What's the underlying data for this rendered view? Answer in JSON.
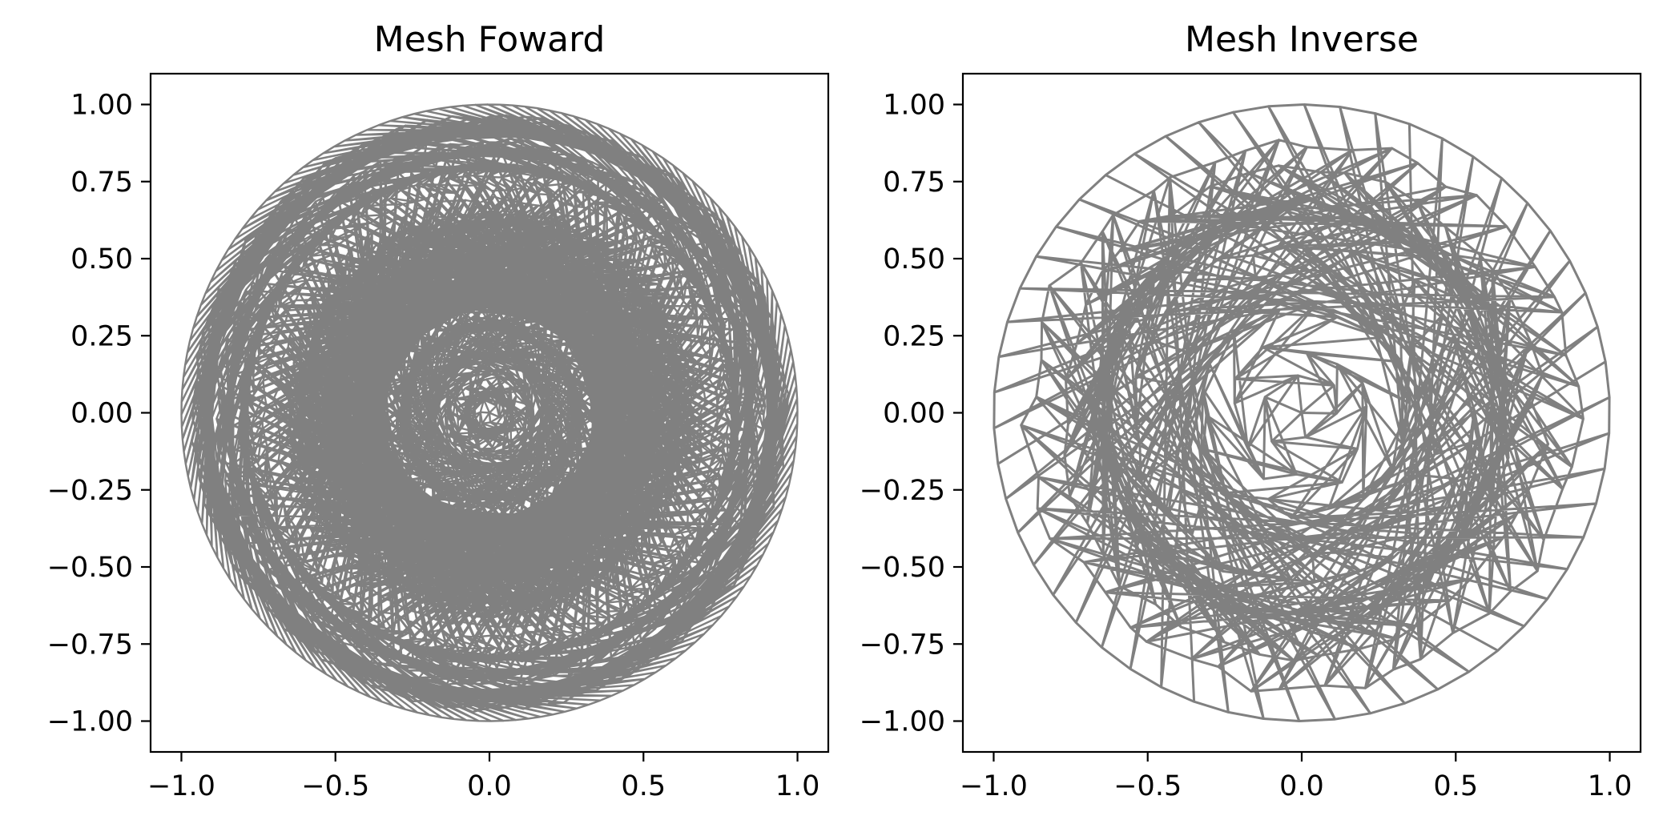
{
  "chart_data": [
    {
      "type": "mesh",
      "title": "Mesh Foward",
      "xlabel": "",
      "ylabel": "",
      "xlim": [
        -1.1,
        1.1
      ],
      "ylim": [
        -1.1,
        1.1
      ],
      "xticks": [
        -1.0,
        -0.5,
        0.0,
        0.5,
        1.0
      ],
      "xtick_labels": [
        "−1.0",
        "−0.5",
        "0.0",
        "0.5",
        "1.0"
      ],
      "yticks": [
        1.0,
        0.75,
        0.5,
        0.25,
        0.0,
        -0.25,
        -0.5,
        -0.75,
        -1.0
      ],
      "ytick_labels": [
        "1.00",
        "0.75",
        "0.50",
        "0.25",
        "0.00",
        "−0.25",
        "−0.50",
        "−0.75",
        "−1.00"
      ],
      "grid": false,
      "domain": {
        "shape": "circle",
        "center": [
          0,
          0
        ],
        "radius": 1.0
      },
      "mesh_density": "fine",
      "edge_color": "#808080"
    },
    {
      "type": "mesh",
      "title": "Mesh Inverse",
      "xlabel": "",
      "ylabel": "",
      "xlim": [
        -1.1,
        1.1
      ],
      "ylim": [
        -1.1,
        1.1
      ],
      "xticks": [
        -1.0,
        -0.5,
        0.0,
        0.5,
        1.0
      ],
      "xtick_labels": [
        "−1.0",
        "−0.5",
        "0.0",
        "0.5",
        "1.0"
      ],
      "yticks": [
        1.0,
        0.75,
        0.5,
        0.25,
        0.0,
        -0.25,
        -0.5,
        -0.75,
        -1.0
      ],
      "ytick_labels": [
        "1.00",
        "0.75",
        "0.50",
        "0.25",
        "0.00",
        "−0.25",
        "−0.50",
        "−0.75",
        "−1.00"
      ],
      "grid": false,
      "domain": {
        "shape": "circle",
        "center": [
          0,
          0
        ],
        "radius": 1.0
      },
      "mesh_density": "coarse",
      "edge_color": "#808080"
    }
  ]
}
